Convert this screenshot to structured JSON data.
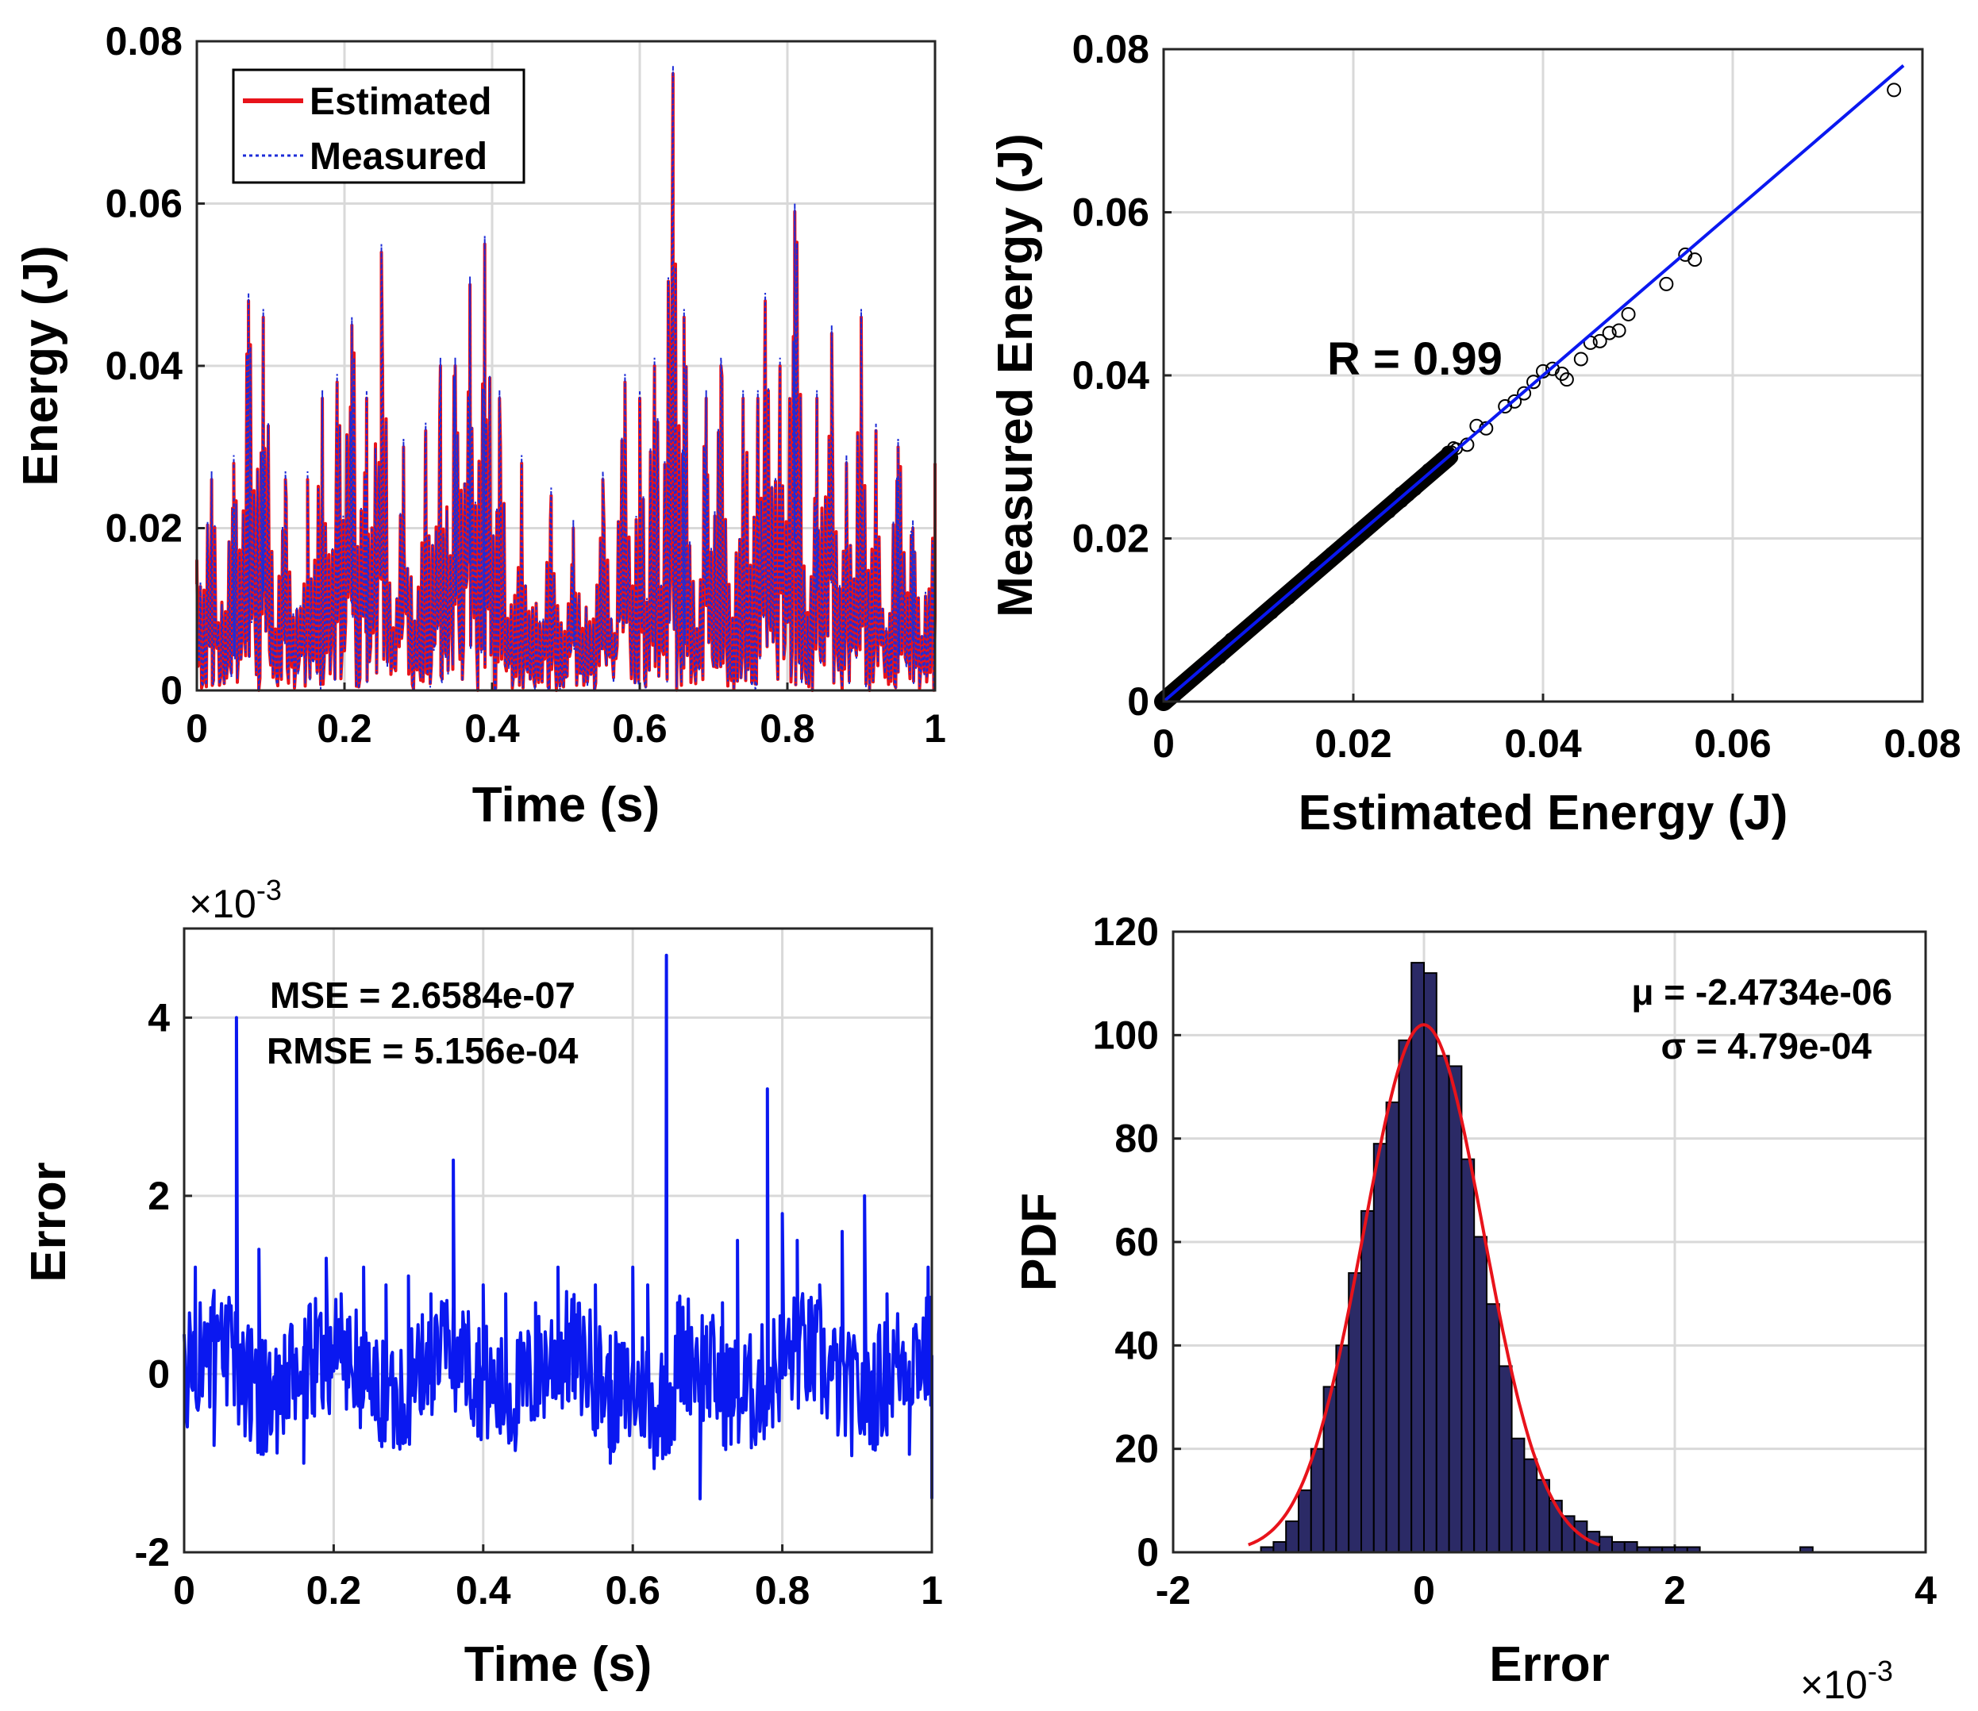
{
  "colors": {
    "estimated": "#e8131b",
    "measured": "#1d2cd8",
    "error_line": "#0a18f0",
    "fit_line": "#0a18f0",
    "marker": "#000000",
    "hist_fill": "#2b2a66",
    "hist_edge": "#000000",
    "normal_curve": "#e8131b",
    "grid": "#d9d9d9"
  },
  "chart_data": [
    {
      "type": "line",
      "xlabel": "Time (s)",
      "ylabel": "Energy (J)",
      "xlim": [
        0,
        1
      ],
      "ylim": [
        0,
        0.08
      ],
      "xticks": [
        "0",
        "0.2",
        "0.4",
        "0.6",
        "0.8",
        "1"
      ],
      "yticks": [
        "0",
        "0.02",
        "0.04",
        "0.06",
        "0.08"
      ],
      "grid": true,
      "legend": "top-left",
      "peaks": [
        [
          0.0,
          0.016
        ],
        [
          0.02,
          0.026
        ],
        [
          0.05,
          0.028
        ],
        [
          0.07,
          0.048
        ],
        [
          0.09,
          0.046
        ],
        [
          0.12,
          0.026
        ],
        [
          0.15,
          0.026
        ],
        [
          0.17,
          0.036
        ],
        [
          0.19,
          0.038
        ],
        [
          0.21,
          0.045
        ],
        [
          0.23,
          0.036
        ],
        [
          0.25,
          0.054
        ],
        [
          0.28,
          0.03
        ],
        [
          0.31,
          0.032
        ],
        [
          0.33,
          0.04
        ],
        [
          0.35,
          0.04
        ],
        [
          0.37,
          0.05
        ],
        [
          0.39,
          0.055
        ],
        [
          0.41,
          0.036
        ],
        [
          0.44,
          0.028
        ],
        [
          0.48,
          0.024
        ],
        [
          0.51,
          0.02
        ],
        [
          0.55,
          0.026
        ],
        [
          0.58,
          0.038
        ],
        [
          0.6,
          0.036
        ],
        [
          0.62,
          0.04
        ],
        [
          0.645,
          0.076
        ],
        [
          0.66,
          0.046
        ],
        [
          0.69,
          0.036
        ],
        [
          0.71,
          0.04
        ],
        [
          0.74,
          0.036
        ],
        [
          0.76,
          0.036
        ],
        [
          0.77,
          0.048
        ],
        [
          0.79,
          0.04
        ],
        [
          0.81,
          0.059
        ],
        [
          0.84,
          0.036
        ],
        [
          0.86,
          0.044
        ],
        [
          0.88,
          0.028
        ],
        [
          0.9,
          0.046
        ],
        [
          0.92,
          0.032
        ],
        [
          0.95,
          0.03
        ],
        [
          0.97,
          0.02
        ],
        [
          1.0,
          0.028
        ]
      ],
      "series": [
        {
          "name": "Estimated"
        },
        {
          "name": "Measured"
        }
      ]
    },
    {
      "type": "scatter",
      "xlabel": "Estimated Energy (J)",
      "ylabel": "Measured Energy (J)",
      "xlim": [
        0,
        0.08
      ],
      "ylim": [
        0,
        0.08
      ],
      "xticks": [
        "0",
        "0.02",
        "0.04",
        "0.06",
        "0.08"
      ],
      "yticks": [
        "0",
        "0.02",
        "0.04",
        "0.06",
        "0.08"
      ],
      "grid": true,
      "annotation": "R = 0.99",
      "fit_line": [
        [
          0,
          0
        ],
        [
          0.078,
          0.078
        ]
      ],
      "points_sample": [
        [
          0.03,
          0.0305
        ],
        [
          0.032,
          0.0315
        ],
        [
          0.033,
          0.0338
        ],
        [
          0.034,
          0.0335
        ],
        [
          0.036,
          0.0362
        ],
        [
          0.037,
          0.0368
        ],
        [
          0.038,
          0.0378
        ],
        [
          0.039,
          0.0392
        ],
        [
          0.04,
          0.0405
        ],
        [
          0.041,
          0.0408
        ],
        [
          0.042,
          0.0402
        ],
        [
          0.0425,
          0.0395
        ],
        [
          0.044,
          0.042
        ],
        [
          0.045,
          0.044
        ],
        [
          0.046,
          0.0442
        ],
        [
          0.047,
          0.0452
        ],
        [
          0.048,
          0.0455
        ],
        [
          0.049,
          0.0475
        ],
        [
          0.053,
          0.0512
        ],
        [
          0.055,
          0.0548
        ],
        [
          0.056,
          0.0542
        ],
        [
          0.077,
          0.075
        ]
      ]
    },
    {
      "type": "line",
      "xlabel": "Time (s)",
      "ylabel": "Error",
      "xlim": [
        0,
        1
      ],
      "ylim": [
        -2,
        5
      ],
      "y_multiplier": "×10",
      "y_exponent": "-3",
      "xticks": [
        "0",
        "0.2",
        "0.4",
        "0.6",
        "0.8",
        "1"
      ],
      "yticks": [
        "-2",
        "0",
        "2",
        "4"
      ],
      "grid": true,
      "annotations": [
        "MSE = 2.6584e-07",
        "RMSE = 5.156e-04"
      ],
      "spikes": [
        [
          0.015,
          1.2
        ],
        [
          0.04,
          -0.8
        ],
        [
          0.07,
          4.0
        ],
        [
          0.09,
          0.5
        ],
        [
          0.1,
          1.4
        ],
        [
          0.16,
          -1.0
        ],
        [
          0.19,
          1.3
        ],
        [
          0.21,
          0.9
        ],
        [
          0.24,
          1.2
        ],
        [
          0.27,
          1.0
        ],
        [
          0.3,
          1.1
        ],
        [
          0.33,
          0.9
        ],
        [
          0.36,
          2.4
        ],
        [
          0.38,
          0.7
        ],
        [
          0.4,
          1.0
        ],
        [
          0.43,
          0.9
        ],
        [
          0.47,
          0.8
        ],
        [
          0.5,
          1.2
        ],
        [
          0.55,
          1.0
        ],
        [
          0.57,
          -1.0
        ],
        [
          0.6,
          1.2
        ],
        [
          0.62,
          1.0
        ],
        [
          0.645,
          4.7
        ],
        [
          0.66,
          0.8
        ],
        [
          0.69,
          -1.4
        ],
        [
          0.72,
          0.8
        ],
        [
          0.74,
          1.5
        ],
        [
          0.78,
          3.2
        ],
        [
          0.8,
          1.8
        ],
        [
          0.82,
          1.5
        ],
        [
          0.85,
          1.0
        ],
        [
          0.88,
          1.6
        ],
        [
          0.91,
          2.0
        ],
        [
          0.94,
          0.9
        ],
        [
          0.97,
          -0.9
        ],
        [
          0.995,
          1.2
        ],
        [
          1.0,
          -1.4
        ]
      ],
      "series": [
        {
          "name": ""
        }
      ]
    },
    {
      "type": "bar",
      "xlabel": "Error",
      "ylabel": "PDF",
      "xlim": [
        -2,
        4
      ],
      "ylim": [
        0,
        120
      ],
      "x_multiplier": "×10",
      "x_exponent": "-3",
      "xticks": [
        "-2",
        "0",
        "2",
        "4"
      ],
      "yticks": [
        "0",
        "20",
        "40",
        "60",
        "80",
        "100",
        "120"
      ],
      "grid": true,
      "annotations": [
        "μ = -2.4734e-06",
        "σ = 4.79e-04"
      ],
      "bin_width": 0.1,
      "bin_left_edges": [
        -1.3,
        -1.2,
        -1.1,
        -1.0,
        -0.9,
        -0.8,
        -0.7,
        -0.6,
        -0.5,
        -0.4,
        -0.3,
        -0.2,
        -0.1,
        0.0,
        0.1,
        0.2,
        0.3,
        0.4,
        0.5,
        0.6,
        0.7,
        0.8,
        0.9,
        1.0,
        1.1,
        1.2,
        1.3,
        1.4,
        1.5,
        1.6,
        1.7,
        1.8,
        1.9,
        2.0,
        2.1,
        3.0
      ],
      "bin_values": [
        1,
        2,
        6,
        12,
        20,
        32,
        40,
        54,
        66,
        79,
        87,
        99,
        114,
        112,
        96,
        94,
        76,
        61,
        48,
        36,
        22,
        18,
        14,
        10,
        7,
        6,
        4,
        3,
        2,
        2,
        1,
        1,
        1,
        1,
        1,
        1
      ],
      "normal_fit": {
        "mean": -0.0025,
        "sigma": 0.479,
        "peak": 102,
        "range": [
          -1.4,
          1.4
        ]
      }
    }
  ]
}
